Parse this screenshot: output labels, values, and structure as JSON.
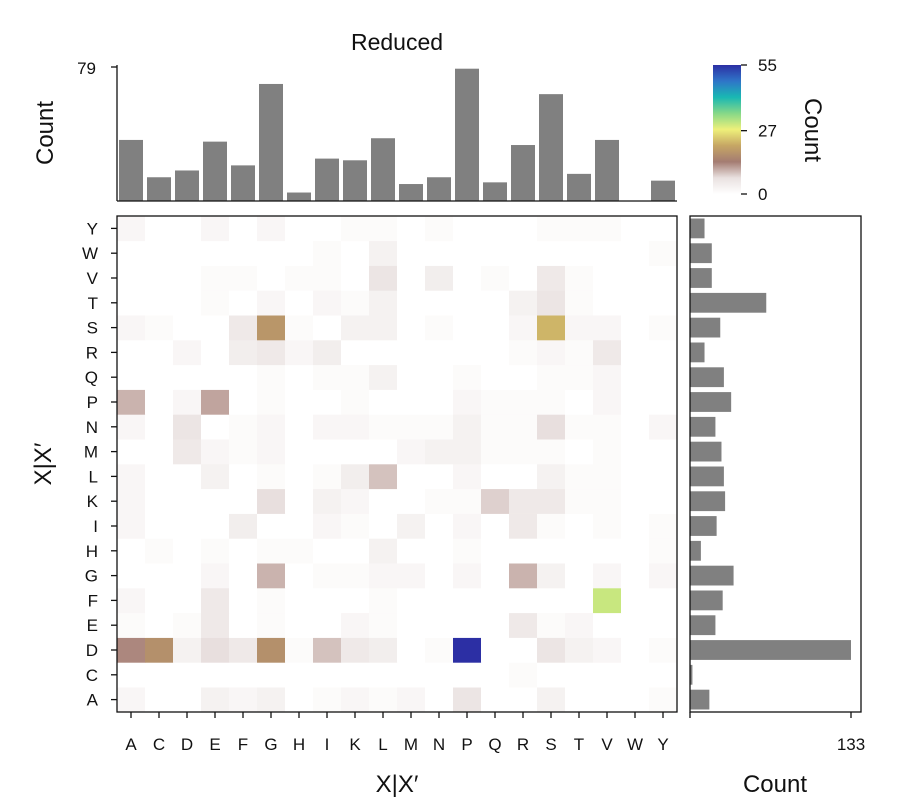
{
  "chart_data": {
    "type": "heatmap",
    "title": "Reduced",
    "xlabel": "X|X′",
    "ylabel": "X|X′",
    "x_categories": [
      "A",
      "C",
      "D",
      "E",
      "F",
      "G",
      "H",
      "I",
      "K",
      "L",
      "M",
      "N",
      "P",
      "Q",
      "R",
      "S",
      "T",
      "V",
      "W",
      "Y"
    ],
    "y_categories": [
      "A",
      "C",
      "D",
      "E",
      "F",
      "G",
      "H",
      "I",
      "K",
      "L",
      "M",
      "N",
      "P",
      "Q",
      "R",
      "S",
      "T",
      "V",
      "W",
      "Y"
    ],
    "matrix": [
      [
        2,
        0,
        0,
        3,
        2,
        3,
        0,
        1,
        2,
        1,
        2,
        0,
        6,
        0,
        0,
        3,
        0,
        0,
        0,
        1
      ],
      [
        0,
        0,
        0,
        0,
        0,
        0,
        0,
        0,
        0,
        0,
        0,
        0,
        0,
        0,
        1,
        0,
        0,
        0,
        0,
        0
      ],
      [
        13,
        17,
        3,
        7,
        5,
        17,
        1,
        9,
        5,
        4,
        0,
        1,
        55,
        0,
        0,
        6,
        3,
        2,
        0,
        1
      ],
      [
        1,
        0,
        1,
        5,
        0,
        1,
        0,
        0,
        2,
        1,
        0,
        0,
        0,
        0,
        5,
        1,
        2,
        0,
        0,
        0
      ],
      [
        2,
        0,
        0,
        5,
        0,
        1,
        0,
        0,
        0,
        1,
        0,
        0,
        0,
        0,
        0,
        0,
        0,
        30,
        0,
        0
      ],
      [
        0,
        0,
        0,
        2,
        0,
        10,
        0,
        1,
        1,
        2,
        2,
        0,
        2,
        0,
        10,
        3,
        0,
        2,
        0,
        2
      ],
      [
        0,
        1,
        0,
        1,
        0,
        1,
        1,
        0,
        0,
        3,
        0,
        0,
        1,
        0,
        0,
        0,
        0,
        0,
        0,
        1
      ],
      [
        2,
        0,
        0,
        0,
        4,
        0,
        0,
        2,
        1,
        0,
        3,
        0,
        2,
        0,
        5,
        1,
        0,
        1,
        0,
        1
      ],
      [
        2,
        0,
        0,
        0,
        0,
        7,
        0,
        3,
        2,
        0,
        0,
        1,
        1,
        8,
        5,
        5,
        1,
        1,
        0,
        0
      ],
      [
        2,
        0,
        0,
        3,
        0,
        1,
        0,
        1,
        4,
        9,
        0,
        0,
        2,
        0,
        0,
        3,
        1,
        1,
        0,
        0
      ],
      [
        0,
        0,
        5,
        2,
        1,
        2,
        0,
        0,
        0,
        0,
        2,
        3,
        3,
        1,
        1,
        1,
        0,
        1,
        0,
        0
      ],
      [
        2,
        0,
        6,
        0,
        1,
        2,
        0,
        2,
        2,
        1,
        1,
        1,
        3,
        1,
        1,
        7,
        1,
        1,
        0,
        2
      ],
      [
        10,
        0,
        2,
        11,
        0,
        1,
        0,
        0,
        1,
        0,
        0,
        0,
        2,
        1,
        1,
        1,
        0,
        2,
        0,
        0
      ],
      [
        0,
        0,
        0,
        0,
        0,
        1,
        0,
        1,
        1,
        3,
        0,
        0,
        1,
        0,
        0,
        1,
        1,
        2,
        0,
        0
      ],
      [
        0,
        0,
        2,
        0,
        4,
        5,
        2,
        4,
        0,
        0,
        0,
        0,
        0,
        0,
        1,
        2,
        1,
        5,
        0,
        0
      ],
      [
        2,
        1,
        0,
        0,
        5,
        18,
        1,
        0,
        3,
        3,
        0,
        1,
        0,
        0,
        2,
        22,
        2,
        2,
        0,
        1
      ],
      [
        0,
        0,
        0,
        1,
        0,
        2,
        0,
        2,
        1,
        3,
        0,
        0,
        0,
        0,
        3,
        6,
        1,
        0,
        0,
        0
      ],
      [
        0,
        0,
        0,
        1,
        1,
        0,
        1,
        1,
        0,
        6,
        0,
        4,
        0,
        1,
        0,
        5,
        1,
        0,
        0,
        0
      ],
      [
        0,
        0,
        0,
        0,
        0,
        0,
        0,
        1,
        0,
        3,
        0,
        0,
        0,
        0,
        0,
        0,
        0,
        0,
        0,
        1
      ],
      [
        2,
        0,
        0,
        2,
        0,
        2,
        0,
        0,
        1,
        1,
        0,
        1,
        0,
        0,
        0,
        1,
        1,
        1,
        0,
        0
      ]
    ],
    "top_marginal": {
      "ylabel": "Count",
      "ylim": [
        0,
        79
      ],
      "tick_labels": [
        "79"
      ],
      "values": [
        36,
        14,
        18,
        35,
        21,
        69,
        5,
        25,
        24,
        37,
        10,
        14,
        78,
        11,
        33,
        63,
        16,
        36,
        0,
        12
      ]
    },
    "right_marginal": {
      "xlabel": "Count",
      "xlim": [
        0,
        133
      ],
      "tick_labels": [
        "133"
      ],
      "values": [
        16,
        2,
        133,
        21,
        27,
        36,
        9,
        22,
        29,
        28,
        26,
        21,
        34,
        28,
        12,
        25,
        63,
        18,
        18,
        12
      ]
    },
    "colorbar": {
      "label": "Count",
      "min": 0,
      "max": 55,
      "tick_labels": [
        "0",
        "27",
        "55"
      ],
      "stops": [
        "#ffffff",
        "#e9e1e0",
        "#a47c72",
        "#c6a664",
        "#eef07a",
        "#86d888",
        "#19b8b3",
        "#2f75c8",
        "#2c2fa4"
      ]
    },
    "bar_color": "#808080"
  }
}
